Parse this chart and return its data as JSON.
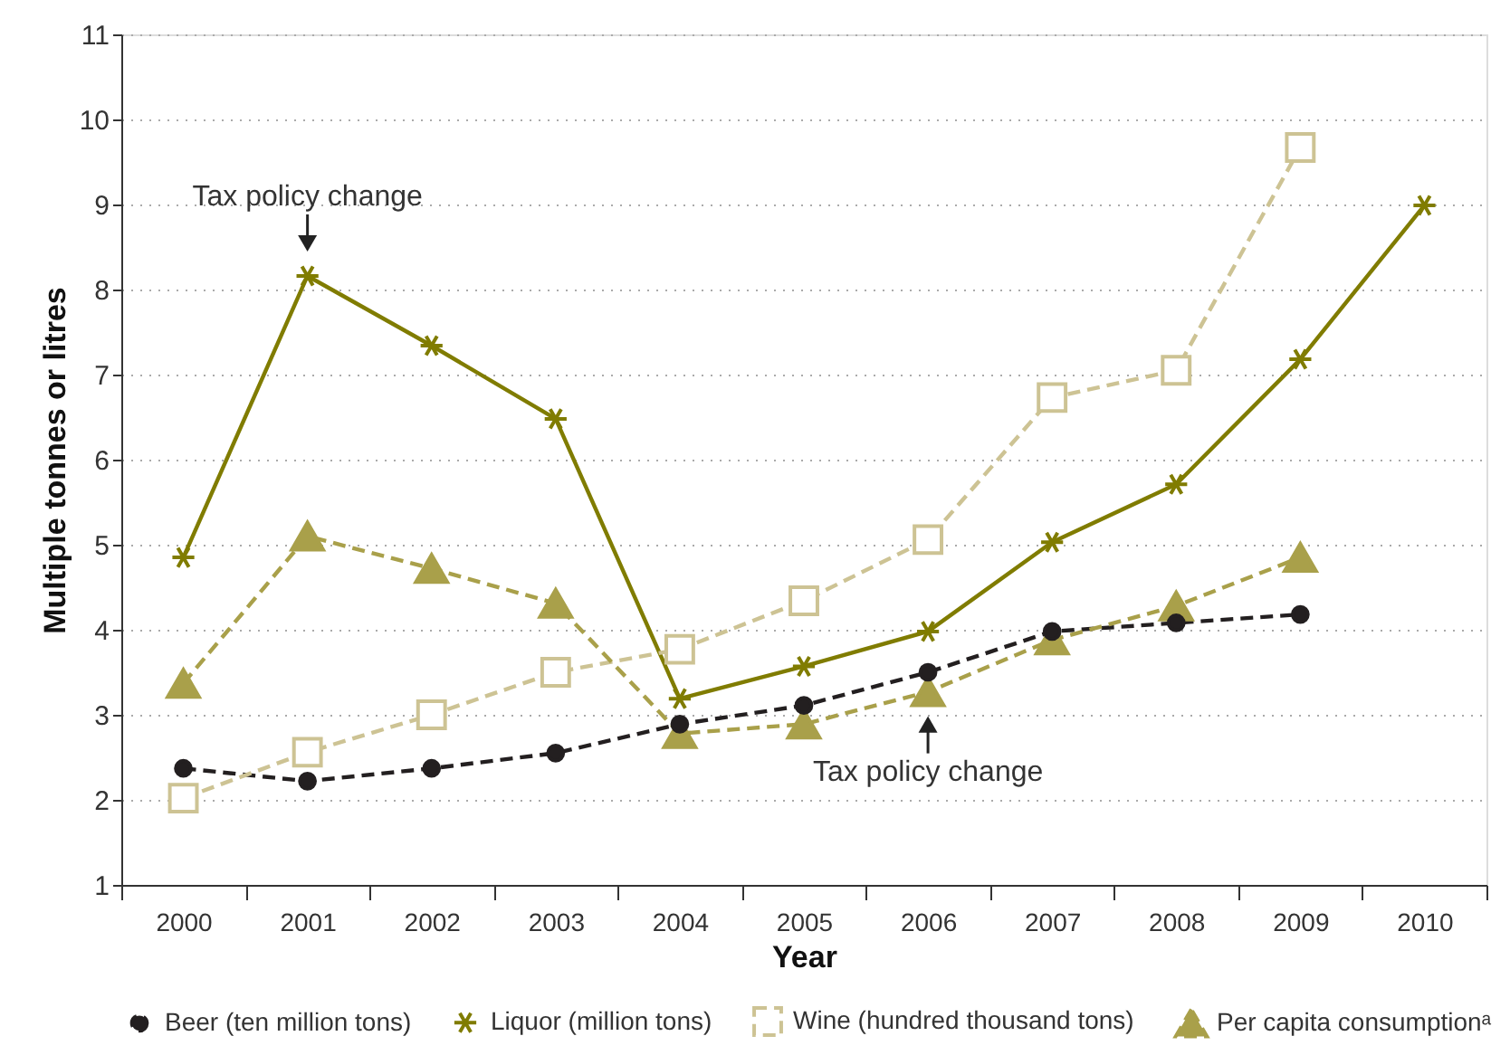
{
  "chart_data": {
    "type": "line",
    "xlabel": "Year",
    "ylabel": "Multiple tonnes or litres",
    "categories": [
      "2000",
      "2001",
      "2002",
      "2003",
      "2004",
      "2005",
      "2006",
      "2007",
      "2008",
      "2009",
      "2010"
    ],
    "series": [
      {
        "name": "Beer (ten million tons)",
        "color": "#231f20",
        "marker": "circle",
        "line_style": "dashed",
        "values": [
          2.37,
          2.22,
          2.37,
          2.55,
          2.89,
          3.11,
          3.5,
          3.98,
          4.08,
          4.18,
          null
        ]
      },
      {
        "name": "Liquor (million tons)",
        "color": "#807c00",
        "marker": "cross",
        "line_style": "solid",
        "values": [
          4.85,
          8.16,
          7.34,
          6.48,
          3.19,
          3.57,
          3.98,
          5.03,
          5.71,
          7.18,
          8.99
        ]
      },
      {
        "name": "Wine (hundred thousand tons)",
        "color": "#cdc394",
        "marker": "square",
        "line_style": "dashed",
        "values": [
          2.02,
          2.56,
          3.0,
          3.5,
          3.77,
          4.34,
          5.06,
          6.73,
          7.05,
          9.67,
          null
        ]
      },
      {
        "name": "Per capita consumptionᵃ",
        "color": "#a9a04a",
        "marker": "triangle",
        "line_style": "dashed",
        "values": [
          3.37,
          5.1,
          4.72,
          4.31,
          2.78,
          2.89,
          3.27,
          3.88,
          4.28,
          4.85,
          null
        ]
      }
    ],
    "ylim": [
      1,
      11
    ],
    "yticks": [
      1,
      2,
      3,
      4,
      5,
      6,
      7,
      8,
      9,
      10,
      11
    ],
    "grid": "y",
    "legend": "bottom",
    "annotations": [
      {
        "text": "Tax policy change",
        "x": "2001",
        "y": 8.16
      },
      {
        "text": "Tax policy change",
        "x": "2006",
        "y": 3.27
      }
    ]
  }
}
